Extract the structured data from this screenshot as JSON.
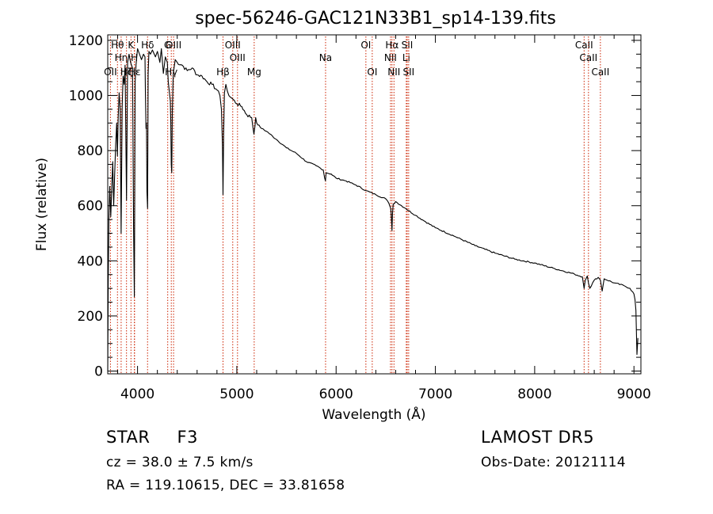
{
  "chart_data": {
    "type": "line",
    "title": "spec-56246-GAC121N33B1_sp14-139.fits",
    "xlabel": "Wavelength (Å)",
    "ylabel": "Flux (relative)",
    "xlim": [
      3700,
      9070
    ],
    "ylim": [
      -10,
      1220
    ],
    "xticks": [
      4000,
      5000,
      6000,
      7000,
      8000,
      9000
    ],
    "yticks": [
      0,
      200,
      400,
      600,
      800,
      1000,
      1200
    ],
    "grid": false,
    "legend": "none",
    "line_color": "#000000",
    "marker_color": "#cc2200",
    "series": [
      {
        "x": [
          3700,
          3705,
          3712,
          3720,
          3730,
          3740,
          3750,
          3760,
          3770,
          3780,
          3790,
          3797,
          3805,
          3815,
          3825,
          3835,
          3845,
          3855,
          3865,
          3875,
          3889,
          3900,
          3915,
          3930,
          3950,
          3960,
          3968,
          3976,
          3985,
          4000,
          4020,
          4040,
          4060,
          4075,
          4080,
          4085,
          4090,
          4095,
          4101,
          4107,
          4115,
          4130,
          4150,
          4180,
          4200,
          4225,
          4240,
          4260,
          4280,
          4300,
          4310,
          4330,
          4335,
          4340,
          4345,
          4350,
          4360,
          4380,
          4400,
          4450,
          4500,
          4550,
          4600,
          4650,
          4700,
          4750,
          4800,
          4830,
          4845,
          4855,
          4861,
          4867,
          4875,
          4890,
          4920,
          4950,
          5000,
          5050,
          5100,
          5150,
          5172,
          5183,
          5190,
          5200,
          5250,
          5300,
          5400,
          5500,
          5600,
          5700,
          5800,
          5870,
          5885,
          5893,
          5900,
          5950,
          6000,
          6100,
          6200,
          6300,
          6400,
          6500,
          6530,
          6550,
          6555,
          6563,
          6568,
          6575,
          6600,
          6700,
          6800,
          6900,
          7000,
          7200,
          7400,
          7600,
          7800,
          8000,
          8200,
          8400,
          8480,
          8498,
          8510,
          8530,
          8542,
          8555,
          8600,
          8640,
          8662,
          8680,
          8700,
          8800,
          8900,
          8960,
          9000,
          9010,
          9020,
          9030,
          9040
        ],
        "y": [
          0,
          320,
          560,
          670,
          560,
          660,
          760,
          600,
          720,
          820,
          900,
          780,
          920,
          1010,
          950,
          500,
          960,
          1070,
          1040,
          1110,
          620,
          1120,
          1150,
          1120,
          1100,
          520,
          270,
          1050,
          1110,
          1170,
          1150,
          1130,
          1150,
          1140,
          1000,
          880,
          900,
          650,
          590,
          1080,
          1160,
          1150,
          1165,
          1140,
          1160,
          1120,
          1170,
          1080,
          1140,
          1120,
          1050,
          980,
          900,
          750,
          720,
          940,
          1080,
          1130,
          1120,
          1110,
          1090,
          1100,
          1075,
          1070,
          1050,
          1040,
          1020,
          1000,
          950,
          820,
          640,
          860,
          1010,
          1040,
          1000,
          990,
          970,
          960,
          930,
          920,
          860,
          890,
          920,
          900,
          880,
          870,
          840,
          810,
          790,
          760,
          745,
          730,
          700,
          690,
          720,
          715,
          700,
          690,
          675,
          655,
          640,
          625,
          610,
          590,
          570,
          510,
          570,
          605,
          615,
          590,
          565,
          542,
          520,
          488,
          455,
          428,
          406,
          392,
          372,
          352,
          342,
          300,
          330,
          345,
          320,
          300,
          330,
          340,
          330,
          290,
          335,
          320,
          310,
          300,
          280,
          260,
          220,
          60,
          120
        ]
      }
    ],
    "line_markers": [
      {
        "x": 3727,
        "label": "OII",
        "row": 3
      },
      {
        "x": 3798,
        "label": "Hθ",
        "row": 1
      },
      {
        "x": 3835,
        "label": "Hη",
        "row": 2
      },
      {
        "x": 3889,
        "label": "Hζ",
        "row": 3
      },
      {
        "x": 3934,
        "label": "K",
        "row": 1
      },
      {
        "x": 3968,
        "label": "H",
        "row": 2
      },
      {
        "x": 3970,
        "label": "Hε",
        "row": 3
      },
      {
        "x": 4101,
        "label": "Hδ",
        "row": 1
      },
      {
        "x": 4304,
        "label": "G",
        "row": 1
      },
      {
        "x": 4340,
        "label": "Hγ",
        "row": 3
      },
      {
        "x": 4363,
        "label": "OIII",
        "row": 1
      },
      {
        "x": 4861,
        "label": "Hβ",
        "row": 3
      },
      {
        "x": 4959,
        "label": "OIII",
        "row": 1
      },
      {
        "x": 5007,
        "label": "OIII",
        "row": 2
      },
      {
        "x": 5175,
        "label": "Mg",
        "row": 3
      },
      {
        "x": 5894,
        "label": "Na",
        "row": 2
      },
      {
        "x": 6300,
        "label": "OI",
        "row": 1
      },
      {
        "x": 6364,
        "label": "OI",
        "row": 3
      },
      {
        "x": 6548,
        "label": "NII",
        "row": 2
      },
      {
        "x": 6563,
        "label": "Hα",
        "row": 1
      },
      {
        "x": 6583,
        "label": "NII",
        "row": 3
      },
      {
        "x": 6707,
        "label": "Li",
        "row": 2
      },
      {
        "x": 6716,
        "label": "SII",
        "row": 1
      },
      {
        "x": 6731,
        "label": "SII",
        "row": 3
      },
      {
        "x": 8498,
        "label": "CaII",
        "row": 1
      },
      {
        "x": 8542,
        "label": "CaII",
        "row": 2
      },
      {
        "x": 8662,
        "label": "CaII",
        "row": 3
      }
    ]
  },
  "info": {
    "class_label": "STAR",
    "subclass": "F3",
    "redshift": "cz = 38.0 ± 7.5 km/s",
    "coords": "RA = 119.10615, DEC =  33.81658",
    "survey": "LAMOST  DR5",
    "obs_date": "Obs-Date: 20121114"
  }
}
